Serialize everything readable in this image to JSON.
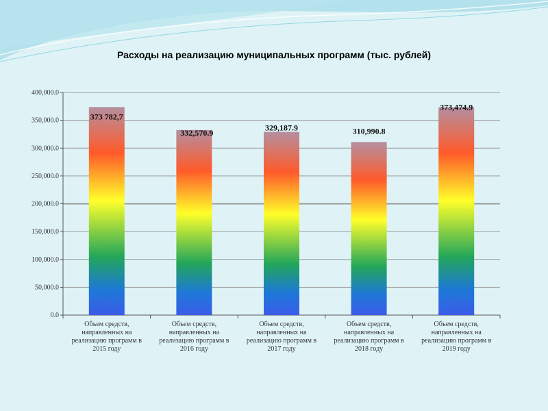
{
  "chart_data": {
    "type": "bar",
    "title": "Расходы на реализацию муниципальных программ (тыс. рублей)",
    "categories": [
      "Объем средств, направленных на реализацию программ в 2015 году",
      "Объем средств, направленных на реализацию программ в 2016 году",
      "Объем средств, направленных на реализацию программ в 2017 году",
      "Объем средств, направленных на реализацию программ в 2018 году",
      "Объем средств, направленных на реализацию программ в 2019 году"
    ],
    "values": [
      373782.7,
      332570.9,
      329187.9,
      310990.8,
      373474.9
    ],
    "data_labels": [
      "373 782,7",
      "332,570.9",
      "329,187.9",
      "310,990.8",
      "373,474.9"
    ],
    "ylim": [
      0,
      400000
    ],
    "yticks": [
      0,
      50000,
      100000,
      150000,
      200000,
      250000,
      300000,
      350000,
      400000
    ],
    "ytick_labels": [
      "0.0",
      "50,000.0",
      "100,000.0",
      "150,000.0",
      "200,000.0",
      "250,000.0",
      "300,000.0",
      "350,000.0",
      "400,000.0"
    ],
    "grid": true,
    "xlabel": "",
    "ylabel": "",
    "colors": {
      "background": "#dff3f6",
      "gradient": [
        "#b48fa0",
        "#ff5a2a",
        "#ffff2a",
        "#22a65a",
        "#1e78d8",
        "#3b5ce8"
      ],
      "grid": "#999999",
      "wave": "#7fcfe0"
    }
  }
}
